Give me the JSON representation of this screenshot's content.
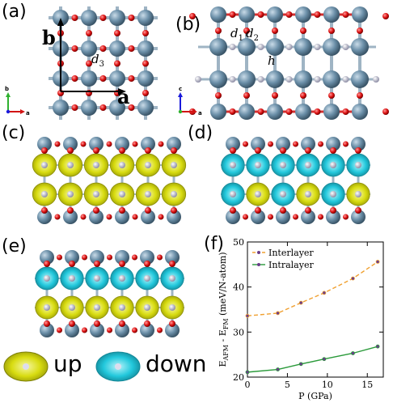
{
  "panels": {
    "a": {
      "label": "(a)",
      "vec_a": "a",
      "vec_b": "b",
      "d3": "d",
      "d3_sub": "3",
      "axes": {
        "b": "b",
        "a": "a"
      }
    },
    "b": {
      "label": "(b)",
      "d1": "d",
      "d1_sub": "1",
      "d2": "d",
      "d2_sub": "2",
      "h": "h",
      "axes": {
        "c": "c",
        "a": "a"
      }
    },
    "c": {
      "label": "(c)"
    },
    "d": {
      "label": "(d)"
    },
    "e": {
      "label": "(e)"
    },
    "f": {
      "label": "(f)"
    }
  },
  "spin_legend": {
    "up": "up",
    "down": "down"
  },
  "colors": {
    "atom_large": "#6b8fa8",
    "atom_small": "#dd1111",
    "atom_pale": "#c8c8d8",
    "spin_up": "#d8dc10",
    "spin_down": "#22c8dc",
    "series_interlayer": "#f0a030",
    "series_intralayer": "#2a9a3a"
  },
  "chart_data": {
    "type": "line",
    "title": "",
    "xlabel": "P (GPa)",
    "ylabel": "E_AFM - E_FM (meV/N-atom)",
    "ylabel_parts": {
      "e": "E",
      "afm": "AFM",
      "minus": " - E",
      "fm": "FM",
      "unit": " (meV/N-atom)"
    },
    "xlim": [
      0,
      17
    ],
    "ylim": [
      20,
      50
    ],
    "xticks": [
      0,
      5,
      10,
      15
    ],
    "yticks": [
      20,
      30,
      40,
      50
    ],
    "grid": false,
    "legend_placement": "top-left",
    "series": [
      {
        "name": "Interlayer",
        "style": "dashed",
        "color": "#f0a030",
        "x": [
          0,
          3.8,
          6.7,
          9.6,
          13.2,
          16.3
        ],
        "y": [
          33.6,
          34.2,
          36.5,
          38.7,
          41.9,
          45.6
        ]
      },
      {
        "name": "Intralayer",
        "style": "solid",
        "color": "#2a9a3a",
        "x": [
          0,
          3.8,
          6.7,
          9.6,
          13.2,
          16.3
        ],
        "y": [
          21.1,
          21.7,
          22.9,
          24.0,
          25.3,
          26.8
        ]
      }
    ]
  }
}
